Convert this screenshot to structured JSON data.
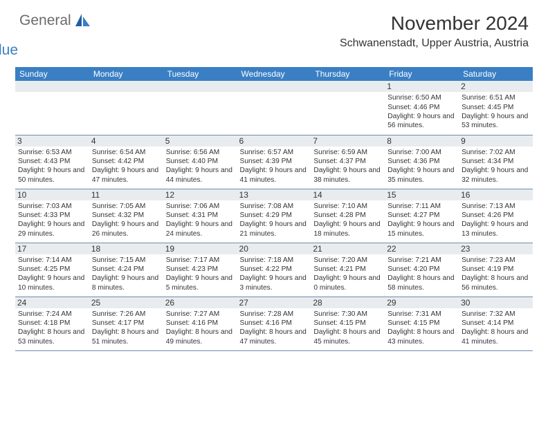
{
  "brand": {
    "word1": "General",
    "word2": "Blue"
  },
  "title": "November 2024",
  "location": "Schwanenstadt, Upper Austria, Austria",
  "colors": {
    "header_bg": "#3a7fc4",
    "header_fg": "#ffffff",
    "daynum_bg": "#e9ecef",
    "border": "#6c8bb0",
    "text": "#333333",
    "logo_gray": "#6b6b6b",
    "logo_blue": "#3a7fc4"
  },
  "dayHeaders": [
    "Sunday",
    "Monday",
    "Tuesday",
    "Wednesday",
    "Thursday",
    "Friday",
    "Saturday"
  ],
  "weeks": [
    [
      null,
      null,
      null,
      null,
      null,
      {
        "n": "1",
        "sr": "6:50 AM",
        "ss": "4:46 PM",
        "dl": "9 hours and 56 minutes."
      },
      {
        "n": "2",
        "sr": "6:51 AM",
        "ss": "4:45 PM",
        "dl": "9 hours and 53 minutes."
      }
    ],
    [
      {
        "n": "3",
        "sr": "6:53 AM",
        "ss": "4:43 PM",
        "dl": "9 hours and 50 minutes."
      },
      {
        "n": "4",
        "sr": "6:54 AM",
        "ss": "4:42 PM",
        "dl": "9 hours and 47 minutes."
      },
      {
        "n": "5",
        "sr": "6:56 AM",
        "ss": "4:40 PM",
        "dl": "9 hours and 44 minutes."
      },
      {
        "n": "6",
        "sr": "6:57 AM",
        "ss": "4:39 PM",
        "dl": "9 hours and 41 minutes."
      },
      {
        "n": "7",
        "sr": "6:59 AM",
        "ss": "4:37 PM",
        "dl": "9 hours and 38 minutes."
      },
      {
        "n": "8",
        "sr": "7:00 AM",
        "ss": "4:36 PM",
        "dl": "9 hours and 35 minutes."
      },
      {
        "n": "9",
        "sr": "7:02 AM",
        "ss": "4:34 PM",
        "dl": "9 hours and 32 minutes."
      }
    ],
    [
      {
        "n": "10",
        "sr": "7:03 AM",
        "ss": "4:33 PM",
        "dl": "9 hours and 29 minutes."
      },
      {
        "n": "11",
        "sr": "7:05 AM",
        "ss": "4:32 PM",
        "dl": "9 hours and 26 minutes."
      },
      {
        "n": "12",
        "sr": "7:06 AM",
        "ss": "4:31 PM",
        "dl": "9 hours and 24 minutes."
      },
      {
        "n": "13",
        "sr": "7:08 AM",
        "ss": "4:29 PM",
        "dl": "9 hours and 21 minutes."
      },
      {
        "n": "14",
        "sr": "7:10 AM",
        "ss": "4:28 PM",
        "dl": "9 hours and 18 minutes."
      },
      {
        "n": "15",
        "sr": "7:11 AM",
        "ss": "4:27 PM",
        "dl": "9 hours and 15 minutes."
      },
      {
        "n": "16",
        "sr": "7:13 AM",
        "ss": "4:26 PM",
        "dl": "9 hours and 13 minutes."
      }
    ],
    [
      {
        "n": "17",
        "sr": "7:14 AM",
        "ss": "4:25 PM",
        "dl": "9 hours and 10 minutes."
      },
      {
        "n": "18",
        "sr": "7:15 AM",
        "ss": "4:24 PM",
        "dl": "9 hours and 8 minutes."
      },
      {
        "n": "19",
        "sr": "7:17 AM",
        "ss": "4:23 PM",
        "dl": "9 hours and 5 minutes."
      },
      {
        "n": "20",
        "sr": "7:18 AM",
        "ss": "4:22 PM",
        "dl": "9 hours and 3 minutes."
      },
      {
        "n": "21",
        "sr": "7:20 AM",
        "ss": "4:21 PM",
        "dl": "9 hours and 0 minutes."
      },
      {
        "n": "22",
        "sr": "7:21 AM",
        "ss": "4:20 PM",
        "dl": "8 hours and 58 minutes."
      },
      {
        "n": "23",
        "sr": "7:23 AM",
        "ss": "4:19 PM",
        "dl": "8 hours and 56 minutes."
      }
    ],
    [
      {
        "n": "24",
        "sr": "7:24 AM",
        "ss": "4:18 PM",
        "dl": "8 hours and 53 minutes."
      },
      {
        "n": "25",
        "sr": "7:26 AM",
        "ss": "4:17 PM",
        "dl": "8 hours and 51 minutes."
      },
      {
        "n": "26",
        "sr": "7:27 AM",
        "ss": "4:16 PM",
        "dl": "8 hours and 49 minutes."
      },
      {
        "n": "27",
        "sr": "7:28 AM",
        "ss": "4:16 PM",
        "dl": "8 hours and 47 minutes."
      },
      {
        "n": "28",
        "sr": "7:30 AM",
        "ss": "4:15 PM",
        "dl": "8 hours and 45 minutes."
      },
      {
        "n": "29",
        "sr": "7:31 AM",
        "ss": "4:15 PM",
        "dl": "8 hours and 43 minutes."
      },
      {
        "n": "30",
        "sr": "7:32 AM",
        "ss": "4:14 PM",
        "dl": "8 hours and 41 minutes."
      }
    ]
  ],
  "labels": {
    "sunrise": "Sunrise:",
    "sunset": "Sunset:",
    "daylight": "Daylight:"
  }
}
